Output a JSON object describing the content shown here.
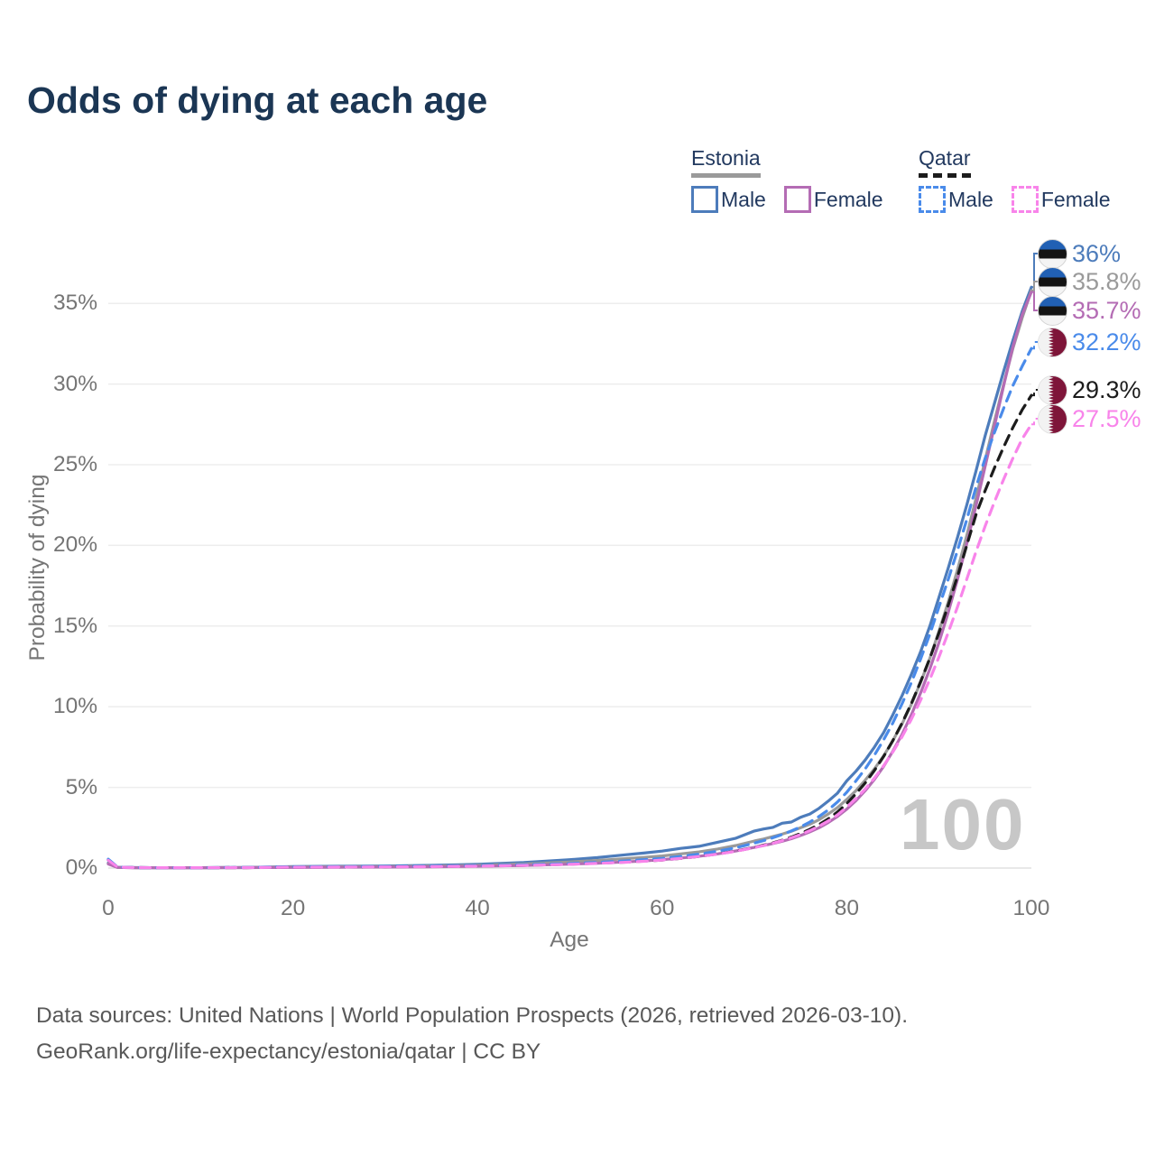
{
  "title": "Odds of dying at each age",
  "legend": {
    "groups": [
      {
        "country": "Estonia",
        "line_style": "solid",
        "line_color": "#9a9a9a",
        "items": [
          {
            "label": "Male",
            "color": "#4d7cbb",
            "style": "solid"
          },
          {
            "label": "Female",
            "color": "#b46cb4",
            "style": "solid"
          }
        ]
      },
      {
        "country": "Qatar",
        "line_style": "dashed",
        "line_color": "#1c1c1c",
        "items": [
          {
            "label": "Male",
            "color": "#4a8bea",
            "style": "dashed"
          },
          {
            "label": "Female",
            "color": "#f884ea",
            "style": "dashed"
          }
        ]
      }
    ]
  },
  "axes": {
    "x_label": "Age",
    "y_label": "Probability of dying",
    "x_tick_labels": [
      "0",
      "20",
      "40",
      "60",
      "80",
      "100"
    ],
    "y_tick_labels": [
      "0%",
      "5%",
      "10%",
      "15%",
      "20%",
      "25%",
      "30%",
      "35%"
    ]
  },
  "watermark": "100",
  "footer": {
    "line1": "Data sources: United Nations | World Population Prospects (2026, retrieved 2026-03-10).",
    "line2": "GeoRank.org/life-expectancy/estonia/qatar | CC BY"
  },
  "chart_data": {
    "type": "line",
    "title": "Odds of dying at each age",
    "xlabel": "Age",
    "ylabel": "Probability of dying",
    "unit": "percent",
    "xlim": [
      0,
      100
    ],
    "ylim_pct": [
      0,
      38.7
    ],
    "x_ticks": [
      0,
      20,
      40,
      60,
      80,
      100
    ],
    "y_ticks_pct": [
      0,
      5,
      10,
      15,
      20,
      25,
      30,
      35
    ],
    "grid": true,
    "legend_position": "top-right",
    "ages": [
      0,
      1,
      3,
      5,
      10,
      15,
      20,
      25,
      30,
      35,
      40,
      45,
      50,
      53,
      56,
      58,
      60,
      62,
      64,
      66,
      68,
      70,
      71,
      72,
      73,
      74,
      75,
      76,
      77,
      78,
      79,
      80,
      81,
      82,
      83,
      84,
      85,
      86,
      87,
      88,
      89,
      90,
      91,
      92,
      93,
      94,
      95,
      96,
      97,
      98,
      99,
      100
    ],
    "series": [
      {
        "id": "estonia-male",
        "country": "Estonia",
        "sex": "Male",
        "style": "solid",
        "color": "#4d7cbb",
        "flag": "estonia",
        "end_label": "36%",
        "end_value_pct": 36.0,
        "values": [
          0.32,
          0.05,
          0.03,
          0.02,
          0.02,
          0.04,
          0.09,
          0.11,
          0.13,
          0.17,
          0.23,
          0.34,
          0.52,
          0.65,
          0.82,
          0.93,
          1.05,
          1.22,
          1.35,
          1.6,
          1.85,
          2.3,
          2.42,
          2.52,
          2.78,
          2.85,
          3.15,
          3.35,
          3.7,
          4.15,
          4.65,
          5.4,
          6.0,
          6.7,
          7.5,
          8.4,
          9.5,
          10.7,
          12.0,
          13.4,
          15.0,
          16.8,
          18.6,
          20.5,
          22.5,
          24.6,
          26.8,
          28.8,
          30.8,
          32.7,
          34.5,
          36.0
        ]
      },
      {
        "id": "estonia-total",
        "country": "Estonia",
        "sex": "All",
        "style": "solid",
        "color": "#9a9a9a",
        "flag": "estonia",
        "end_label": "35.8%",
        "end_value_pct": 35.8,
        "values": [
          0.28,
          0.04,
          0.02,
          0.02,
          0.02,
          0.03,
          0.06,
          0.08,
          0.09,
          0.12,
          0.17,
          0.25,
          0.38,
          0.47,
          0.58,
          0.66,
          0.75,
          0.88,
          1.0,
          1.18,
          1.4,
          1.68,
          1.8,
          1.95,
          2.1,
          2.28,
          2.5,
          2.72,
          3.0,
          3.35,
          3.75,
          4.25,
          4.8,
          5.45,
          6.15,
          6.95,
          7.9,
          8.95,
          10.15,
          11.5,
          13.0,
          14.7,
          16.5,
          18.5,
          20.6,
          22.9,
          25.3,
          27.7,
          30.0,
          32.2,
          34.1,
          35.8
        ]
      },
      {
        "id": "estonia-female",
        "country": "Estonia",
        "sex": "Female",
        "style": "solid",
        "color": "#b46cb4",
        "flag": "estonia",
        "end_label": "35.7%",
        "end_value_pct": 35.7,
        "values": [
          0.25,
          0.04,
          0.02,
          0.02,
          0.02,
          0.03,
          0.04,
          0.05,
          0.06,
          0.08,
          0.11,
          0.16,
          0.24,
          0.3,
          0.38,
          0.44,
          0.52,
          0.62,
          0.73,
          0.88,
          1.06,
          1.28,
          1.4,
          1.52,
          1.66,
          1.82,
          2.02,
          2.24,
          2.5,
          2.82,
          3.2,
          3.65,
          4.18,
          4.8,
          5.5,
          6.3,
          7.25,
          8.3,
          9.5,
          10.85,
          12.35,
          14.0,
          15.85,
          17.9,
          20.1,
          22.45,
          24.9,
          27.4,
          29.9,
          32.3,
          34.3,
          35.7
        ]
      },
      {
        "id": "qatar-total",
        "country": "Qatar",
        "sex": "All",
        "style": "dashed",
        "color": "#1c1c1c",
        "flag": "qatar",
        "end_label": "29.3%",
        "end_value_pct": 29.3,
        "values": [
          0.5,
          0.05,
          0.03,
          0.02,
          0.02,
          0.03,
          0.05,
          0.06,
          0.08,
          0.1,
          0.13,
          0.17,
          0.24,
          0.3,
          0.37,
          0.43,
          0.5,
          0.6,
          0.72,
          0.87,
          1.05,
          1.28,
          1.42,
          1.56,
          1.72,
          1.92,
          2.14,
          2.4,
          2.7,
          3.05,
          3.48,
          4.0,
          4.6,
          5.28,
          6.05,
          6.92,
          7.9,
          9.0,
          10.2,
          11.55,
          13.0,
          14.6,
          16.3,
          18.1,
          20.0,
          21.9,
          23.4,
          24.8,
          26.1,
          27.3,
          28.4,
          29.3
        ]
      },
      {
        "id": "qatar-male",
        "country": "Qatar",
        "sex": "Male",
        "style": "dashed",
        "color": "#4a8bea",
        "flag": "qatar",
        "end_label": "32.2%",
        "end_value_pct": 32.2,
        "values": [
          0.55,
          0.06,
          0.03,
          0.02,
          0.02,
          0.04,
          0.07,
          0.08,
          0.1,
          0.12,
          0.15,
          0.2,
          0.28,
          0.35,
          0.44,
          0.52,
          0.6,
          0.72,
          0.86,
          1.04,
          1.26,
          1.55,
          1.7,
          1.88,
          2.08,
          2.3,
          2.55,
          2.85,
          3.2,
          3.6,
          4.1,
          4.7,
          5.4,
          6.15,
          7.0,
          7.95,
          9.0,
          10.2,
          11.5,
          12.95,
          14.5,
          16.2,
          17.9,
          19.7,
          21.6,
          23.6,
          25.4,
          27.0,
          28.5,
          29.9,
          31.1,
          32.2
        ]
      },
      {
        "id": "qatar-female",
        "country": "Qatar",
        "sex": "Female",
        "style": "dashed",
        "color": "#f884ea",
        "flag": "qatar",
        "end_label": "27.5%",
        "end_value_pct": 27.5,
        "values": [
          0.48,
          0.05,
          0.03,
          0.02,
          0.02,
          0.03,
          0.05,
          0.06,
          0.07,
          0.09,
          0.12,
          0.16,
          0.23,
          0.29,
          0.36,
          0.42,
          0.5,
          0.6,
          0.72,
          0.86,
          1.04,
          1.27,
          1.4,
          1.54,
          1.7,
          1.88,
          2.08,
          2.32,
          2.6,
          2.92,
          3.3,
          3.78,
          4.3,
          4.9,
          5.58,
          6.35,
          7.2,
          8.15,
          9.22,
          10.4,
          11.7,
          13.1,
          14.6,
          16.2,
          17.9,
          19.6,
          21.2,
          22.7,
          24.1,
          25.4,
          26.6,
          27.5
        ]
      }
    ]
  }
}
